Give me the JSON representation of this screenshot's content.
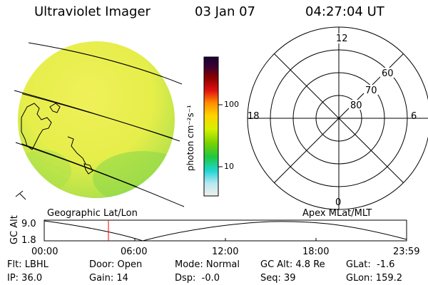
{
  "header": {
    "instrument": "Ultraviolet Imager",
    "date": "03 Jan 07",
    "time": "04:27:04 UT"
  },
  "colorbar": {
    "unit_label": "photon cm⁻²s⁻¹",
    "ticks": [
      "100",
      "10"
    ],
    "colors": [
      "#1a0033",
      "#8b0000",
      "#e01010",
      "#ff8c00",
      "#ffd200",
      "#d6f000",
      "#78d200",
      "#20c840",
      "#20d6d6",
      "#b8e8f0",
      "#f0f0f0"
    ]
  },
  "polar_plot": {
    "mlt_labels": {
      "top": "12",
      "left": "18",
      "right": "6",
      "bottom": "0"
    },
    "lat_labels": [
      "60",
      "70",
      "80"
    ]
  },
  "orbit_plot": {
    "left_title": "Geographic Lat/Lon",
    "right_title": "Apex MLat/MLT",
    "ylabel": "GC Alt",
    "y_ticks": [
      "9.0",
      "1.8"
    ],
    "x_ticks": [
      "00:00",
      "06:00",
      "12:00",
      "18:00",
      "23:59"
    ],
    "current_time_marker": "04:27:04",
    "marker_color": "#ff0000"
  },
  "info": {
    "row1": [
      "Flt: LBHL",
      "Door: Open",
      "Mode: Normal",
      "GC Alt: 4.8 Re",
      "GLat:  -1.6"
    ],
    "row2": [
      "IP: 36.0",
      "Gain: 14",
      "Dsp:  -0.0",
      "Seq: 39",
      "GLon: 159.2"
    ]
  },
  "colors": {
    "disk_main": "#e6ee4a",
    "disk_cyan": "#40d6c8",
    "disk_green": "#8ed84a"
  }
}
